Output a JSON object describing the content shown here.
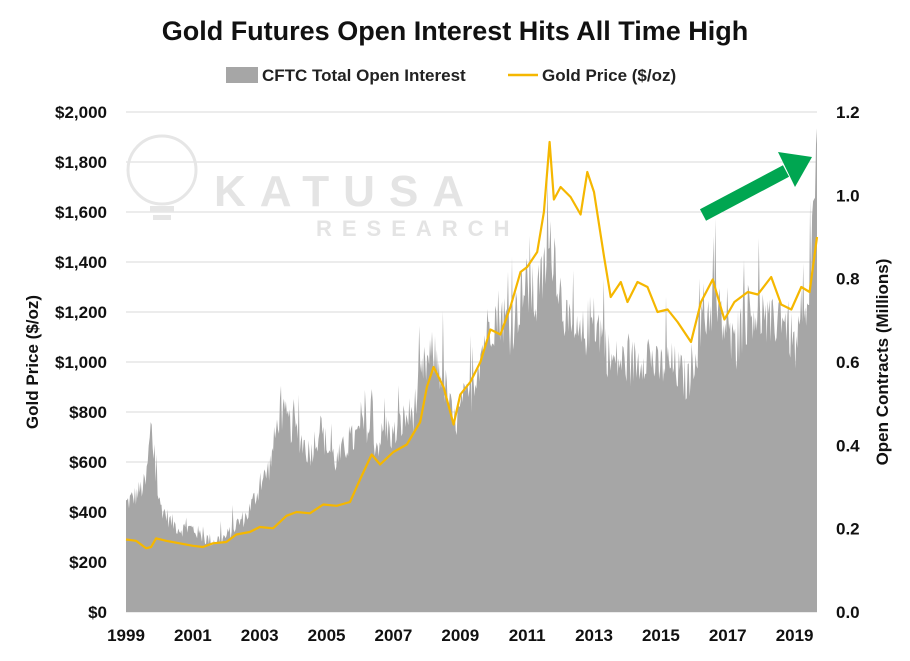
{
  "chart_data": {
    "type": "area",
    "title": "Gold Futures Open Interest Hits All Time High",
    "ylabel_left": "Gold Price ($/oz)",
    "ylabel_right": "Open Contracts (Millions)",
    "xlabel": "",
    "x_ticks": [
      "1999",
      "2001",
      "2003",
      "2005",
      "2007",
      "2009",
      "2011",
      "2013",
      "2015",
      "2017",
      "2019"
    ],
    "y_left_ticks": [
      "$0",
      "$200",
      "$400",
      "$600",
      "$800",
      "$1,000",
      "$1,200",
      "$1,400",
      "$1,600",
      "$1,800",
      "$2,000"
    ],
    "y_right_ticks": [
      "0.0",
      "0.2",
      "0.4",
      "0.6",
      "0.8",
      "1.0",
      "1.2"
    ],
    "xlim": [
      1999.0,
      2019.67
    ],
    "ylim_left": [
      0,
      2000
    ],
    "ylim_right": [
      0,
      1.2
    ],
    "grid": true,
    "legend_position": "top",
    "watermark": {
      "name": "KATUSA",
      "sub": "RESEARCH"
    },
    "colors": {
      "open_interest": "#a6a6a6",
      "gold_price": "#f5b700",
      "arrow": "#00a651"
    },
    "series": [
      {
        "name": "CFTC Total Open Interest",
        "axis": "right",
        "style": "area",
        "x": [
          1999.0,
          1999.3,
          1999.6,
          1999.75,
          1999.85,
          2000.0,
          2000.3,
          2000.6,
          2001.0,
          2001.3,
          2001.6,
          2002.0,
          2002.3,
          2002.6,
          2003.0,
          2003.3,
          2003.6,
          2003.9,
          2004.2,
          2004.5,
          2004.8,
          2005.0,
          2005.3,
          2005.6,
          2005.9,
          2006.2,
          2006.5,
          2006.8,
          2007.0,
          2007.3,
          2007.6,
          2007.9,
          2008.2,
          2008.5,
          2008.8,
          2009.0,
          2009.3,
          2009.6,
          2009.9,
          2010.2,
          2010.5,
          2010.8,
          2011.0,
          2011.3,
          2011.6,
          2011.8,
          2012.0,
          2012.3,
          2012.6,
          2012.9,
          2013.2,
          2013.5,
          2013.8,
          2014.0,
          2014.3,
          2014.6,
          2014.9,
          2015.2,
          2015.5,
          2015.8,
          2016.0,
          2016.3,
          2016.6,
          2016.9,
          2017.2,
          2017.5,
          2017.8,
          2018.0,
          2018.3,
          2018.6,
          2018.9,
          2019.0,
          2019.2,
          2019.4,
          2019.55,
          2019.67
        ],
        "values": [
          0.26,
          0.28,
          0.31,
          0.45,
          0.35,
          0.26,
          0.22,
          0.2,
          0.2,
          0.18,
          0.17,
          0.18,
          0.21,
          0.23,
          0.3,
          0.35,
          0.48,
          0.45,
          0.42,
          0.38,
          0.44,
          0.4,
          0.36,
          0.4,
          0.42,
          0.45,
          0.4,
          0.44,
          0.42,
          0.46,
          0.48,
          0.58,
          0.62,
          0.56,
          0.45,
          0.48,
          0.52,
          0.62,
          0.7,
          0.72,
          0.68,
          0.75,
          0.78,
          0.74,
          0.85,
          0.88,
          0.76,
          0.66,
          0.65,
          0.7,
          0.68,
          0.6,
          0.6,
          0.6,
          0.6,
          0.63,
          0.58,
          0.6,
          0.58,
          0.55,
          0.62,
          0.7,
          0.75,
          0.68,
          0.63,
          0.7,
          0.73,
          0.7,
          0.68,
          0.73,
          0.66,
          0.63,
          0.66,
          0.7,
          0.95,
          1.1
        ]
      },
      {
        "name": "Gold Price ($/oz)",
        "axis": "left",
        "style": "line",
        "x": [
          1999.0,
          1999.3,
          1999.6,
          1999.75,
          1999.9,
          2000.2,
          2000.6,
          2001.0,
          2001.3,
          2001.6,
          2002.0,
          2002.3,
          2002.7,
          2003.0,
          2003.4,
          2003.8,
          2004.1,
          2004.5,
          2004.9,
          2005.3,
          2005.7,
          2006.0,
          2006.35,
          2006.6,
          2007.0,
          2007.4,
          2007.8,
          2008.0,
          2008.2,
          2008.5,
          2008.8,
          2009.0,
          2009.3,
          2009.6,
          2009.9,
          2010.2,
          2010.5,
          2010.8,
          2011.0,
          2011.3,
          2011.5,
          2011.67,
          2011.8,
          2012.0,
          2012.3,
          2012.6,
          2012.8,
          2013.0,
          2013.3,
          2013.5,
          2013.8,
          2014.0,
          2014.3,
          2014.6,
          2014.9,
          2015.2,
          2015.5,
          2015.9,
          2016.2,
          2016.55,
          2016.9,
          2017.2,
          2017.6,
          2017.9,
          2018.3,
          2018.6,
          2018.9,
          2019.2,
          2019.45,
          2019.67
        ],
        "values": [
          290,
          285,
          255,
          260,
          295,
          285,
          275,
          265,
          260,
          275,
          280,
          310,
          320,
          340,
          335,
          385,
          400,
          395,
          430,
          425,
          440,
          530,
          630,
          590,
          640,
          670,
          760,
          900,
          980,
          900,
          750,
          870,
          920,
          1000,
          1130,
          1110,
          1220,
          1360,
          1380,
          1440,
          1600,
          1880,
          1650,
          1700,
          1660,
          1590,
          1760,
          1680,
          1420,
          1260,
          1320,
          1240,
          1320,
          1300,
          1200,
          1210,
          1160,
          1080,
          1240,
          1330,
          1170,
          1240,
          1280,
          1270,
          1340,
          1230,
          1210,
          1300,
          1280,
          1500
        ]
      }
    ]
  }
}
